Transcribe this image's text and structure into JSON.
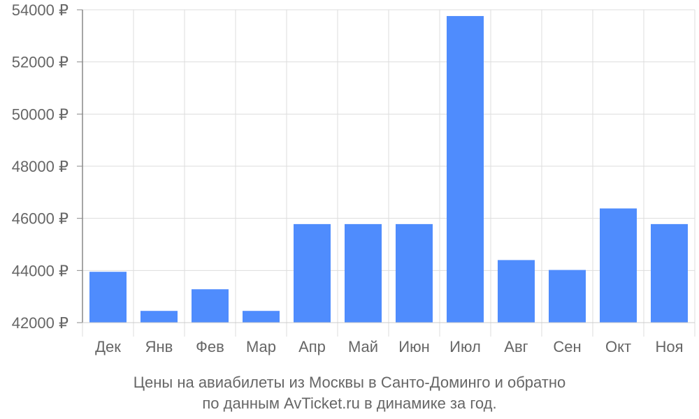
{
  "chart_data": {
    "type": "bar",
    "categories": [
      "Дек",
      "Янв",
      "Фев",
      "Мар",
      "Апр",
      "Май",
      "Июн",
      "Июл",
      "Авг",
      "Сен",
      "Окт",
      "Ноя"
    ],
    "values": [
      43950,
      42450,
      43280,
      42450,
      45780,
      45780,
      45780,
      53760,
      44400,
      44020,
      46380,
      45780
    ],
    "ylim": [
      42000,
      54000
    ],
    "yticks": [
      42000,
      44000,
      46000,
      48000,
      50000,
      52000,
      54000
    ],
    "ytick_labels": [
      "42000 ₽",
      "44000 ₽",
      "46000 ₽",
      "48000 ₽",
      "50000 ₽",
      "52000 ₽",
      "54000 ₽"
    ],
    "grid": true,
    "bar_color": "#4f8cfd",
    "grid_color": "#dddddd",
    "axis_color": "#888888",
    "label_color": "#666666"
  },
  "caption": {
    "line1": "Цены на авиабилеты из Москвы в Санто-Доминго и обратно",
    "line2": "по данным AvTicket.ru в динамике за год."
  }
}
